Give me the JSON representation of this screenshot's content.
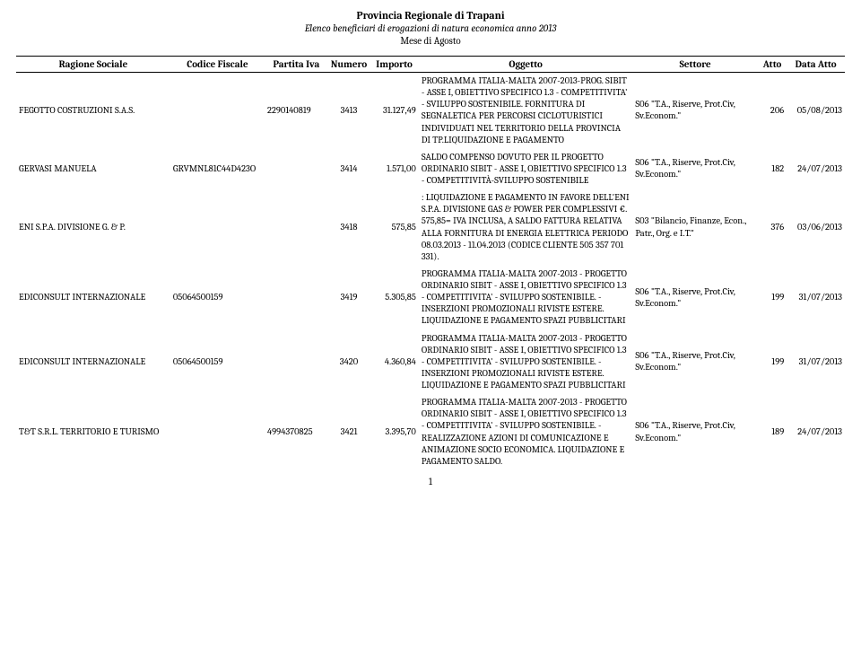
{
  "header": {
    "organization": "Provincia Regionale di Trapani",
    "title": "Elenco beneficiari di erogazioni di natura economica anno 2013",
    "period": "Mese di Agosto"
  },
  "columns": {
    "ragione_sociale": "Ragione Sociale",
    "codice_fiscale": "Codice Fiscale",
    "partita_iva": "Partita Iva",
    "numero": "Numero",
    "importo": "Importo",
    "oggetto": "Oggetto",
    "settore": "Settore",
    "atto": "Atto",
    "data_atto": "Data Atto"
  },
  "rows": [
    {
      "ragione_sociale": "FEGOTTO COSTRUZIONI S.A.S.",
      "codice_fiscale": "",
      "partita_iva": "2290140819",
      "numero": "3413",
      "importo": "31.127,49",
      "oggetto": "PROGRAMMA ITALIA-MALTA 2007-2013-PROG. SIBIT - ASSE I,   OBIETTIVO SPECIFICO 1.3 - COMPETITIVITA' - SVILUPPO SOSTENIBILE.  FORNITURA DI SEGNALETICA PER PERCORSI CICLOTURISTICI INDIVIDUATI NEL TERRITORIO DELLA PROVINCIA DI TP.LIQUIDAZIONE E PAGAMENTO",
      "settore": "S06 \"T.A., Riserve, Prot.Civ, Sv.Econom.\"",
      "atto": "206",
      "data_atto": "05/08/2013"
    },
    {
      "ragione_sociale": "GERVASI MANUELA",
      "codice_fiscale": "GRVMNL81C44D423O",
      "partita_iva": "",
      "numero": "3414",
      "importo": "1.571,00",
      "oggetto": "SALDO COMPENSO DOVUTO PER IL PROGETTO ORDINARIO SIBIT - ASSE I, OBIETTIVO SPECIFICO 1.3 - COMPETITIVITÀ-SVILUPPO SOSTENIBILE",
      "settore": "S06 \"T.A., Riserve, Prot.Civ, Sv.Econom.\"",
      "atto": "182",
      "data_atto": "24/07/2013"
    },
    {
      "ragione_sociale": "ENI S.P.A. DIVISIONE G. & P.",
      "codice_fiscale": "",
      "partita_iva": "",
      "numero": "3418",
      "importo": "575,85",
      "oggetto": ": LIQUIDAZIONE E PAGAMENTO IN FAVORE DELL'ENI S.P.A. DIVISIONE GAS & POWER PER  COMPLESSIVI  €. 575,85= IVA INCLUSA,  A SALDO FATTURA RELATIVA ALLA FORNITURA DI ENERGIA ELETTRICA PERIODO 08.03.2013 - 11.04.2013 (CODICE CLIENTE 505 357 701 331).",
      "settore": "S03 \"Bilancio, Finanze, Econ., Patr., Org. e I.T.\"",
      "atto": "376",
      "data_atto": "03/06/2013"
    },
    {
      "ragione_sociale": "EDICONSULT INTERNAZIONALE",
      "codice_fiscale": "05064500159",
      "partita_iva": "",
      "numero": "3419",
      "importo": "5.305,85",
      "oggetto": "PROGRAMMA ITALIA-MALTA 2007-2013 - PROGETTO ORDINARIO SIBIT - ASSE I, OBIETTIVO SPECIFICO 1.3 - COMPETITIVITA' - SVILUPPO SOSTENIBILE.  -  INSERZIONI PROMOZIONALI RIVISTE ESTERE. LIQUIDAZIONE E PAGAMENTO SPAZI PUBBLICITARI",
      "settore": "S06 \"T.A., Riserve, Prot.Civ, Sv.Econom.\"",
      "atto": "199",
      "data_atto": "31/07/2013"
    },
    {
      "ragione_sociale": "EDICONSULT INTERNAZIONALE",
      "codice_fiscale": "05064500159",
      "partita_iva": "",
      "numero": "3420",
      "importo": "4.360,84",
      "oggetto": "PROGRAMMA ITALIA-MALTA 2007-2013 - PROGETTO ORDINARIO SIBIT - ASSE I, OBIETTIVO SPECIFICO 1.3 - COMPETITIVITA' - SVILUPPO SOSTENIBILE.  -   INSERZIONI PROMOZIONALI RIVISTE ESTERE. LIQUIDAZIONE E PAGAMENTO SPAZI PUBBLICITARI",
      "settore": "S06 \"T.A., Riserve, Prot.Civ, Sv.Econom.\"",
      "atto": "199",
      "data_atto": "31/07/2013"
    },
    {
      "ragione_sociale": "T&T S.R.L. TERRITORIO E TURISMO",
      "codice_fiscale": "",
      "partita_iva": "4994370825",
      "numero": "3421",
      "importo": "3.395,70",
      "oggetto": "PROGRAMMA ITALIA-MALTA 2007-2013 - PROGETTO ORDINARIO SIBIT - ASSE I, OBIETTIVO SPECIFICO 1.3 - COMPETITIVITA' - SVILUPPO SOSTENIBILE.  - REALIZZAZIONE AZIONI DI COMUNICAZIONE E ANIMAZIONE SOCIO ECONOMICA. LIQUIDAZIONE E PAGAMENTO  SALDO.",
      "settore": "S06 \"T.A., Riserve, Prot.Civ, Sv.Econom.\"",
      "atto": "189",
      "data_atto": "24/07/2013"
    }
  ],
  "footer": {
    "page_number": "1"
  }
}
